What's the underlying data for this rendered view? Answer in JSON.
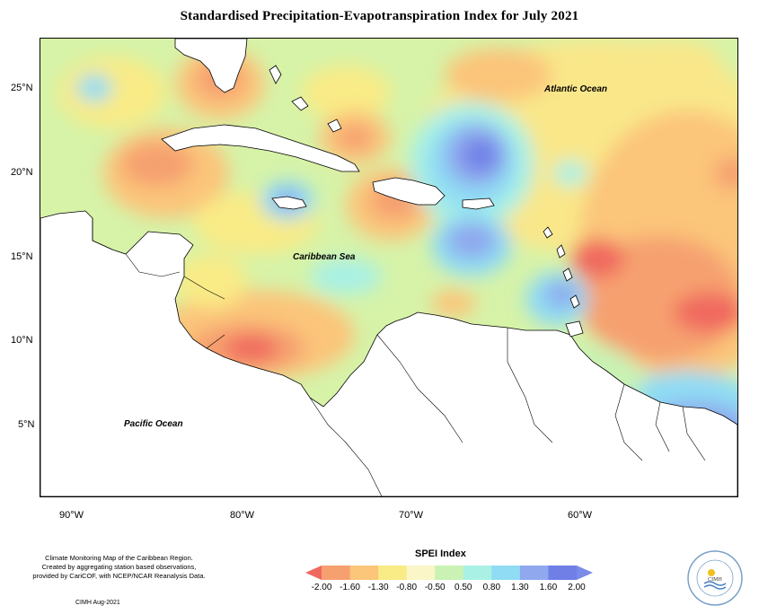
{
  "title": "Standardised Precipitation-Evapotranspiration Index for July 2021",
  "map": {
    "labels": {
      "atlantic": "Atlantic Ocean",
      "caribbean": "Caribbean Sea",
      "pacific": "Pacific Ocean"
    },
    "lat_ticks": [
      "25°N",
      "20°N",
      "15°N",
      "10°N",
      "5°N"
    ],
    "lon_ticks": [
      "90°W",
      "80°W",
      "70°W",
      "60°W"
    ],
    "extent": {
      "lon": [
        -92,
        -51
      ],
      "lat": [
        1.5,
        28.5
      ]
    }
  },
  "legend": {
    "title": "SPEI Index",
    "ticks": [
      "-2.00",
      "-1.60",
      "-1.30",
      "-0.80",
      "-0.50",
      "0.50",
      "0.80",
      "1.30",
      "1.60",
      "2.00"
    ],
    "colors": [
      "#f0695f",
      "#f6a070",
      "#fbc57a",
      "#f9eb86",
      "#faf6c8",
      "#c9f2b4",
      "#a9f1e5",
      "#8fdcf4",
      "#8fa8ee",
      "#6f7fe6",
      "#7a8be8"
    ]
  },
  "footer": {
    "note_lines": [
      "Climate Monitoring Map of the Caribbean Region.",
      "Created by aggregating station based observations,",
      "provided by CariCOF, with NCEP/NCAR Reanalysis Data."
    ],
    "credit": "CIMH Aug-2021"
  },
  "logo": {
    "text": "CIMH",
    "ring_text": "Caribbean Institute for Meteorology and Hydrology"
  }
}
